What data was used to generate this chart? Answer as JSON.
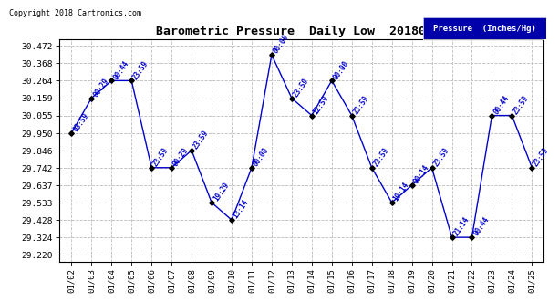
{
  "title": "Barometric Pressure  Daily Low  20180126",
  "copyright": "Copyright 2018 Cartronics.com",
  "legend_label": "Pressure  (Inches/Hg)",
  "background_color": "#ffffff",
  "line_color": "#0000cc",
  "marker_color": "#000000",
  "grid_color": "#bbbbbb",
  "dates": [
    "01/02",
    "01/03",
    "01/04",
    "01/05",
    "01/06",
    "01/07",
    "01/08",
    "01/09",
    "01/10",
    "01/11",
    "01/12",
    "01/13",
    "01/14",
    "01/15",
    "01/16",
    "01/17",
    "01/18",
    "01/19",
    "01/20",
    "01/21",
    "01/22",
    "01/23",
    "01/24",
    "01/25"
  ],
  "values": [
    29.95,
    30.159,
    30.264,
    30.264,
    29.742,
    29.742,
    29.846,
    29.533,
    29.428,
    29.742,
    30.42,
    30.159,
    30.055,
    30.264,
    30.055,
    29.742,
    29.533,
    29.637,
    29.742,
    29.324,
    29.324,
    30.055,
    30.055,
    29.742
  ],
  "time_labels": [
    "03:59",
    "00:29",
    "00:44",
    "23:59",
    "23:59",
    "00:29",
    "23:59",
    "19:29",
    "13:14",
    "00:00",
    "00:00",
    "23:59",
    "12:59",
    "00:00",
    "23:59",
    "23:59",
    "19:14",
    "00:14",
    "23:59",
    "21:14",
    "00:44",
    "00:44",
    "23:59",
    "23:59"
  ],
  "yticks": [
    29.22,
    29.324,
    29.428,
    29.533,
    29.637,
    29.742,
    29.846,
    29.95,
    30.055,
    30.159,
    30.264,
    30.368,
    30.472
  ],
  "ylim_min": 29.176,
  "ylim_max": 30.51
}
